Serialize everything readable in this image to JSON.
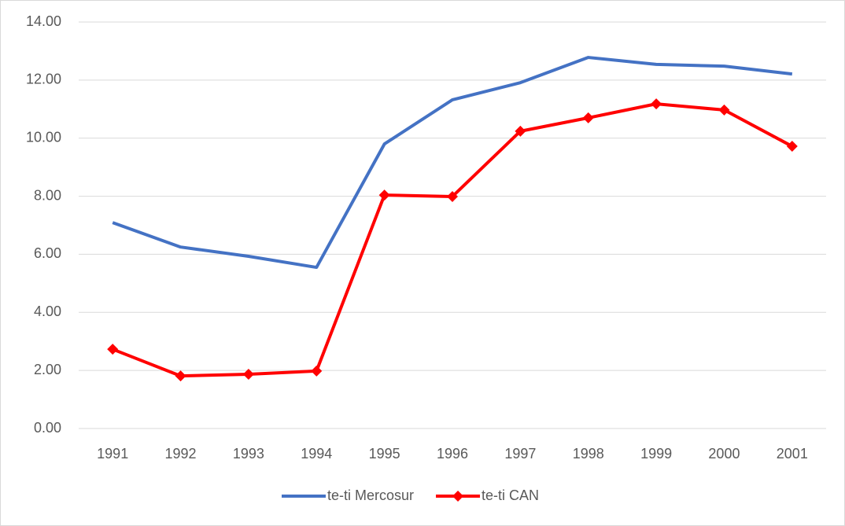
{
  "chart_data": {
    "type": "line",
    "categories": [
      "1991",
      "1992",
      "1993",
      "1994",
      "1995",
      "1996",
      "1997",
      "1998",
      "1999",
      "2000",
      "2001"
    ],
    "series": [
      {
        "name": "te-ti Mercosur",
        "color": "#4472c4",
        "values": [
          7.09,
          6.25,
          5.93,
          5.55,
          9.8,
          11.32,
          11.91,
          12.78,
          12.54,
          12.48,
          12.21
        ]
      },
      {
        "name": "te-ti CAN",
        "color": "#ff0000",
        "marker": "diamond",
        "values": [
          2.73,
          1.81,
          1.87,
          1.98,
          8.04,
          7.99,
          10.24,
          10.7,
          11.18,
          10.97,
          9.72
        ]
      }
    ],
    "ylim": [
      0,
      14
    ],
    "yticks": [
      {
        "value": 0,
        "label": "0.00"
      },
      {
        "value": 2,
        "label": "2.00"
      },
      {
        "value": 4,
        "label": "4.00"
      },
      {
        "value": 6,
        "label": "6.00"
      },
      {
        "value": 8,
        "label": "8.00"
      },
      {
        "value": 10,
        "label": "10.00"
      },
      {
        "value": 12,
        "label": "12.00"
      },
      {
        "value": 14,
        "label": "14.00"
      }
    ],
    "grid": true,
    "legend": "bottom"
  }
}
